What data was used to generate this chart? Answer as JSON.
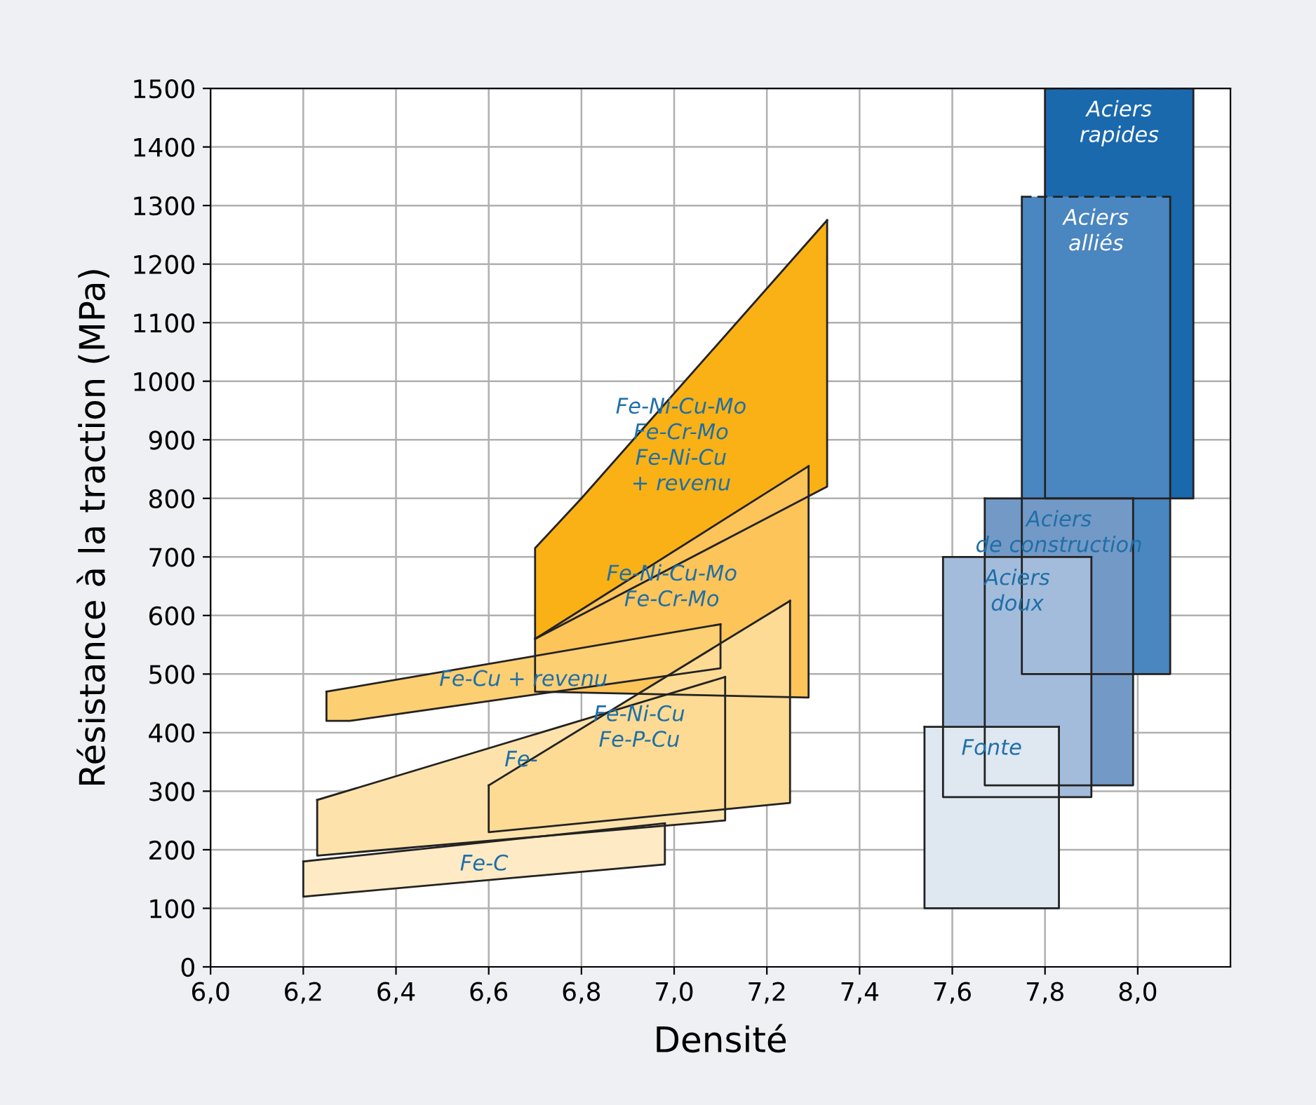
{
  "chart_data": {
    "type": "area",
    "xlabel": "Densité",
    "ylabel": "Résistance à la traction (MPa)",
    "xlim": [
      6.0,
      8.2
    ],
    "ylim": [
      0,
      1500
    ],
    "xticks": [
      {
        "value": 6.0,
        "label": "6,0"
      },
      {
        "value": 6.2,
        "label": "6,2"
      },
      {
        "value": 6.4,
        "label": "6,4"
      },
      {
        "value": 6.6,
        "label": "6,6"
      },
      {
        "value": 6.8,
        "label": "6,8"
      },
      {
        "value": 7.0,
        "label": "7,0"
      },
      {
        "value": 7.2,
        "label": "7,2"
      },
      {
        "value": 7.4,
        "label": "7,4"
      },
      {
        "value": 7.6,
        "label": "7,6"
      },
      {
        "value": 7.8,
        "label": "7,8"
      },
      {
        "value": 8.0,
        "label": "8,0"
      }
    ],
    "yticks": [
      0,
      100,
      200,
      300,
      400,
      500,
      600,
      700,
      800,
      900,
      1000,
      1100,
      1200,
      1300,
      1400,
      1500
    ],
    "grid": true,
    "legend": false,
    "series": [
      {
        "name": "Fe-Ni-Cu-Mo\nFe-Cr-Mo\nFe-Ni-Cu\n+ revenu",
        "color": "#f9b115",
        "x": [
          7.33,
          7.33,
          6.7,
          6.7,
          6.8
        ],
        "values": [
          1275,
          820,
          560,
          715,
          800
        ]
      },
      {
        "name": "Fe-Ni-Cu-Mo\nFe-Cr-Mo",
        "color": "#fcc459",
        "x": [
          7.29,
          7.29,
          6.7,
          6.7
        ],
        "values": [
          855,
          460,
          470,
          560
        ]
      },
      {
        "name": "Fe-Cu + revenu",
        "color": "#fdcf73",
        "x": [
          7.1,
          7.1,
          6.3,
          6.25,
          6.25
        ],
        "values": [
          585,
          510,
          420,
          420,
          470
        ]
      },
      {
        "name": "Fe-",
        "color": "#fde3ab",
        "x": [
          7.11,
          7.11,
          6.23,
          6.23
        ],
        "values": [
          495,
          250,
          190,
          285
        ]
      },
      {
        "name": "Fe-Ni-Cu\nFe-P-Cu",
        "color": "#fddb94",
        "x": [
          7.25,
          7.25,
          6.6,
          6.6
        ],
        "values": [
          625,
          280,
          230,
          310
        ]
      },
      {
        "name": "Fe-C",
        "color": "#feeac4",
        "x": [
          6.98,
          6.98,
          6.2,
          6.2
        ],
        "values": [
          245,
          175,
          120,
          180
        ]
      },
      {
        "name": "Aciers\nrapides",
        "color": "#1a69ad",
        "x": [
          8.12,
          8.12,
          7.8,
          7.8
        ],
        "values": [
          1500,
          800,
          800,
          1500
        ],
        "line_style": "dashed"
      },
      {
        "name": "Aciers\nalliés",
        "color": "#4a86c0",
        "x": [
          8.07,
          8.07,
          7.75,
          7.75
        ],
        "values": [
          1315,
          500,
          500,
          1315
        ],
        "line_style": "dashed"
      },
      {
        "name": "Aciers\nde construction",
        "color": "#7399c6",
        "x": [
          7.99,
          7.99,
          7.67,
          7.67
        ],
        "values": [
          800,
          310,
          310,
          800
        ]
      },
      {
        "name": "Aciers\ndoux",
        "color": "#a3bcdb",
        "x": [
          7.9,
          7.9,
          7.58,
          7.58
        ],
        "values": [
          700,
          290,
          290,
          700
        ]
      },
      {
        "name": "Fonte",
        "color": "#dfe7f1",
        "x": [
          7.83,
          7.83,
          7.54,
          7.54
        ],
        "values": [
          410,
          100,
          100,
          410
        ]
      }
    ]
  }
}
